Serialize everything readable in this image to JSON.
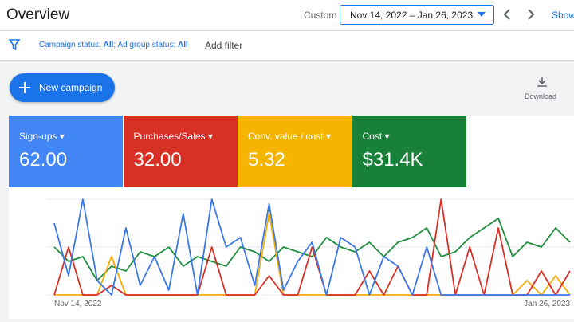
{
  "header": {
    "title": "Overview",
    "range_mode": "Custom",
    "date_range": "Nov 14, 2022 – Jan 26, 2023",
    "show": "Show"
  },
  "filter_bar": {
    "campaign_status_label": "Campaign status:",
    "campaign_status_value": "All",
    "ad_group_status_label": "; Ad group status:",
    "ad_group_status_value": "All",
    "add_filter": "Add filter"
  },
  "toolbar": {
    "new_campaign": "New campaign",
    "download": "Download"
  },
  "metrics": [
    {
      "label": "Sign-ups",
      "value": "62.00",
      "color": "#4285f4"
    },
    {
      "label": "Purchases/Sales",
      "value": "32.00",
      "color": "#d93025"
    },
    {
      "label": "Conv. value / cost",
      "value": "5.32",
      "color": "#f4b400"
    },
    {
      "label": "Cost",
      "value": "$31.4K",
      "color": "#188038"
    }
  ],
  "chart_data": {
    "type": "line",
    "ylim": [
      0,
      100
    ],
    "gridlines": [
      0,
      50,
      100
    ],
    "categories": [
      "Nov 14, 2022",
      null,
      null,
      null,
      null,
      null,
      null,
      null,
      null,
      null,
      null,
      null,
      null,
      null,
      null,
      null,
      null,
      null,
      null,
      null,
      null,
      null,
      null,
      null,
      null,
      null,
      null,
      null,
      null,
      null,
      null,
      null,
      null,
      null,
      null,
      null,
      "Jan 26, 2023"
    ],
    "series": [
      {
        "name": "Sign-ups",
        "color": "#3b78e7",
        "values": [
          75,
          20,
          100,
          15,
          0,
          70,
          10,
          40,
          5,
          85,
          0,
          100,
          50,
          60,
          10,
          95,
          5,
          35,
          55,
          0,
          60,
          50,
          0,
          40,
          30,
          0,
          50,
          0,
          0,
          0,
          0,
          0,
          0,
          0,
          0,
          0,
          0
        ]
      },
      {
        "name": "Purchases/Sales",
        "color": "#d93025",
        "values": [
          0,
          50,
          0,
          0,
          10,
          0,
          0,
          0,
          0,
          0,
          0,
          50,
          0,
          0,
          0,
          20,
          0,
          0,
          50,
          0,
          0,
          0,
          25,
          0,
          30,
          0,
          0,
          100,
          0,
          50,
          0,
          70,
          0,
          0,
          25,
          0,
          25
        ]
      },
      {
        "name": "Conv. value / cost",
        "color": "#f9ab00",
        "values": [
          0,
          0,
          0,
          0,
          40,
          0,
          0,
          0,
          0,
          0,
          0,
          0,
          0,
          0,
          0,
          85,
          0,
          0,
          0,
          0,
          0,
          0,
          0,
          0,
          0,
          0,
          0,
          0,
          0,
          0,
          0,
          0,
          0,
          15,
          0,
          20,
          0
        ]
      },
      {
        "name": "Cost",
        "color": "#1e8e3e",
        "values": [
          50,
          35,
          40,
          15,
          30,
          25,
          45,
          40,
          50,
          30,
          40,
          35,
          30,
          50,
          45,
          35,
          50,
          45,
          40,
          60,
          50,
          45,
          55,
          40,
          55,
          60,
          70,
          40,
          45,
          60,
          70,
          80,
          40,
          55,
          50,
          70,
          55
        ]
      }
    ]
  }
}
